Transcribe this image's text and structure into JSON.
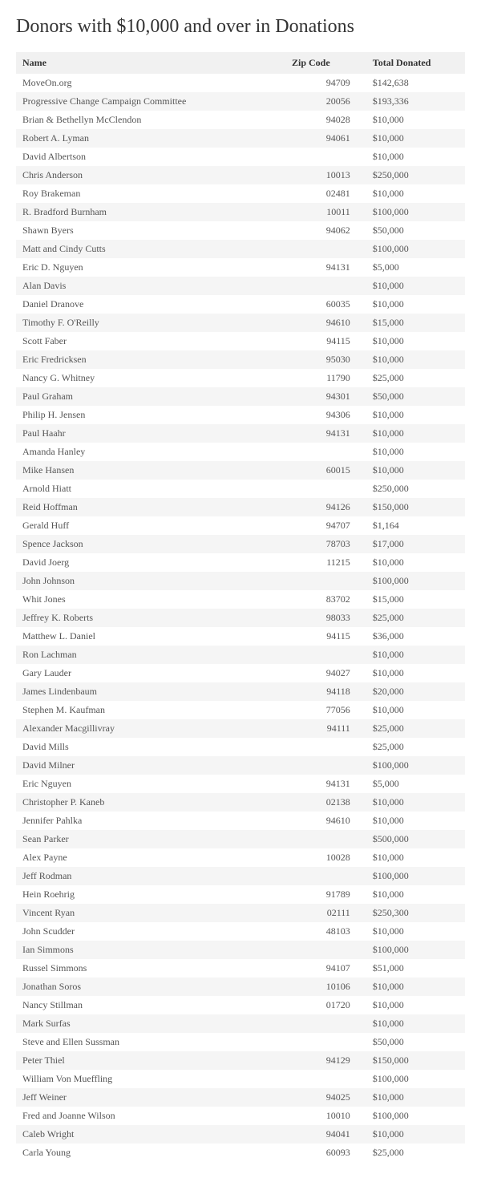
{
  "page": {
    "title": "Donors with $10,000 and over in Donations"
  },
  "table": {
    "columns": [
      "Name",
      "Zip Code",
      "Total Donated"
    ],
    "rows": [
      {
        "name": "MoveOn.org",
        "zip": "94709",
        "total": "$142,638"
      },
      {
        "name": "Progressive Change Campaign Committee",
        "zip": "20056",
        "total": "$193,336"
      },
      {
        "name": "Brian & Bethellyn McClendon",
        "zip": "94028",
        "total": "$10,000"
      },
      {
        "name": "Robert A. Lyman",
        "zip": "94061",
        "total": "$10,000"
      },
      {
        "name": "David Albertson",
        "zip": "",
        "total": "$10,000"
      },
      {
        "name": "Chris Anderson",
        "zip": "10013",
        "total": "$250,000"
      },
      {
        "name": "Roy Brakeman",
        "zip": "02481",
        "total": "$10,000"
      },
      {
        "name": "R. Bradford Burnham",
        "zip": "10011",
        "total": "$100,000"
      },
      {
        "name": "Shawn Byers",
        "zip": "94062",
        "total": "$50,000"
      },
      {
        "name": "Matt and Cindy Cutts",
        "zip": "",
        "total": "$100,000"
      },
      {
        "name": "Eric D. Nguyen",
        "zip": "94131",
        "total": "$5,000"
      },
      {
        "name": "Alan Davis",
        "zip": "",
        "total": "$10,000"
      },
      {
        "name": "Daniel Dranove",
        "zip": "60035",
        "total": "$10,000"
      },
      {
        "name": "Timothy F. O'Reilly",
        "zip": "94610",
        "total": "$15,000"
      },
      {
        "name": "Scott Faber",
        "zip": "94115",
        "total": "$10,000"
      },
      {
        "name": "Eric Fredricksen",
        "zip": "95030",
        "total": "$10,000"
      },
      {
        "name": "Nancy G. Whitney",
        "zip": "11790",
        "total": "$25,000"
      },
      {
        "name": "Paul Graham",
        "zip": "94301",
        "total": "$50,000"
      },
      {
        "name": "Philip H. Jensen",
        "zip": "94306",
        "total": "$10,000"
      },
      {
        "name": "Paul Haahr",
        "zip": "94131",
        "total": "$10,000"
      },
      {
        "name": "Amanda Hanley",
        "zip": "",
        "total": "$10,000"
      },
      {
        "name": "Mike Hansen",
        "zip": "60015",
        "total": "$10,000"
      },
      {
        "name": "Arnold Hiatt",
        "zip": "",
        "total": "$250,000"
      },
      {
        "name": "Reid Hoffman",
        "zip": "94126",
        "total": "$150,000"
      },
      {
        "name": "Gerald Huff",
        "zip": "94707",
        "total": "$1,164"
      },
      {
        "name": "Spence Jackson",
        "zip": "78703",
        "total": "$17,000"
      },
      {
        "name": "David Joerg",
        "zip": "11215",
        "total": "$10,000"
      },
      {
        "name": "John Johnson",
        "zip": "",
        "total": "$100,000"
      },
      {
        "name": "Whit Jones",
        "zip": "83702",
        "total": "$15,000"
      },
      {
        "name": "Jeffrey K. Roberts",
        "zip": "98033",
        "total": "$25,000"
      },
      {
        "name": "Matthew L. Daniel",
        "zip": "94115",
        "total": "$36,000"
      },
      {
        "name": "Ron Lachman",
        "zip": "",
        "total": "$10,000"
      },
      {
        "name": "Gary Lauder",
        "zip": "94027",
        "total": "$10,000"
      },
      {
        "name": "James Lindenbaum",
        "zip": "94118",
        "total": "$20,000"
      },
      {
        "name": "Stephen M. Kaufman",
        "zip": "77056",
        "total": "$10,000"
      },
      {
        "name": "Alexander Macgillivray",
        "zip": "94111",
        "total": "$25,000"
      },
      {
        "name": "David Mills",
        "zip": "",
        "total": "$25,000"
      },
      {
        "name": "David Milner",
        "zip": "",
        "total": "$100,000"
      },
      {
        "name": "Eric Nguyen",
        "zip": "94131",
        "total": "$5,000"
      },
      {
        "name": "Christopher P. Kaneb",
        "zip": "02138",
        "total": "$10,000"
      },
      {
        "name": "Jennifer Pahlka",
        "zip": "94610",
        "total": "$10,000"
      },
      {
        "name": "Sean Parker",
        "zip": "",
        "total": "$500,000"
      },
      {
        "name": "Alex Payne",
        "zip": "10028",
        "total": "$10,000"
      },
      {
        "name": "Jeff Rodman",
        "zip": "",
        "total": "$100,000"
      },
      {
        "name": "Hein Roehrig",
        "zip": "91789",
        "total": "$10,000"
      },
      {
        "name": "Vincent Ryan",
        "zip": "02111",
        "total": "$250,300"
      },
      {
        "name": "John Scudder",
        "zip": "48103",
        "total": "$10,000"
      },
      {
        "name": "Ian Simmons",
        "zip": "",
        "total": "$100,000"
      },
      {
        "name": "Russel Simmons",
        "zip": "94107",
        "total": "$51,000"
      },
      {
        "name": "Jonathan Soros",
        "zip": "10106",
        "total": "$10,000"
      },
      {
        "name": "Nancy Stillman",
        "zip": "01720",
        "total": "$10,000"
      },
      {
        "name": "Mark Surfas",
        "zip": "",
        "total": "$10,000"
      },
      {
        "name": "Steve and Ellen Sussman",
        "zip": "",
        "total": "$50,000"
      },
      {
        "name": "Peter Thiel",
        "zip": "94129",
        "total": "$150,000"
      },
      {
        "name": "William Von Mueffling",
        "zip": "",
        "total": "$100,000"
      },
      {
        "name": "Jeff Weiner",
        "zip": "94025",
        "total": "$10,000"
      },
      {
        "name": "Fred and Joanne Wilson",
        "zip": "10010",
        "total": "$100,000"
      },
      {
        "name": "Caleb Wright",
        "zip": "94041",
        "total": "$10,000"
      },
      {
        "name": "Carla Young",
        "zip": "60093",
        "total": "$25,000"
      }
    ]
  }
}
